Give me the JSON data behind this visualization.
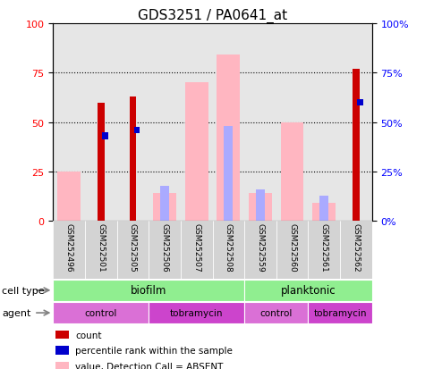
{
  "title": "GDS3251 / PA0641_at",
  "samples": [
    "GSM252496",
    "GSM252501",
    "GSM252505",
    "GSM252506",
    "GSM252507",
    "GSM252508",
    "GSM252559",
    "GSM252560",
    "GSM252561",
    "GSM252562"
  ],
  "count_values": [
    0,
    60,
    63,
    0,
    0,
    0,
    0,
    0,
    0,
    77
  ],
  "percentile_values": [
    0,
    43,
    46,
    0,
    0,
    0,
    0,
    0,
    0,
    60
  ],
  "value_absent": [
    25,
    0,
    0,
    14,
    70,
    84,
    14,
    50,
    9,
    0
  ],
  "rank_absent": [
    0,
    0,
    0,
    18,
    0,
    48,
    16,
    0,
    13,
    0
  ],
  "count_color": "#CC0000",
  "percentile_color": "#0000CC",
  "value_absent_color": "#FFB6C1",
  "rank_absent_color": "#AAAAFF",
  "ylim": [
    0,
    100
  ],
  "yticks": [
    0,
    25,
    50,
    75,
    100
  ],
  "bg_color": "#FFFFFF",
  "sample_bg_color": "#D3D3D3",
  "biofilm_color": "#90EE90",
  "planktonic_color": "#90EE90",
  "control_color": "#DA70D6",
  "tobramycin_color": "#CC44CC",
  "cell_type_label": "cell type",
  "agent_label": "agent"
}
